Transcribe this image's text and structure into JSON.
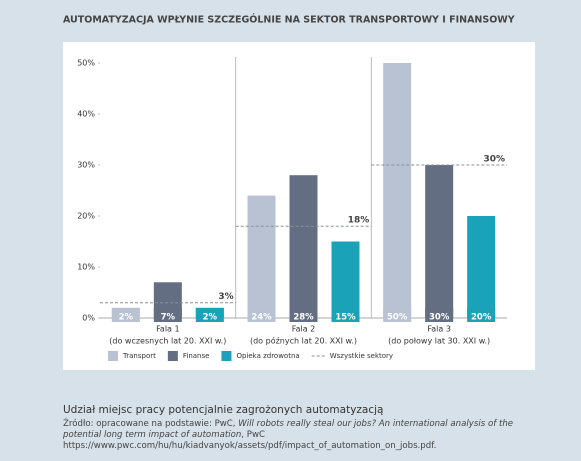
{
  "chart_data": {
    "type": "bar",
    "title": "AUTOMATYZACJA WPŁYNIE SZCZEGÓLNIE NA SEKTOR TRANSPORTOWY I FINANSOWY",
    "categories": [
      "Fala 1",
      "Fala 2",
      "Fala 3"
    ],
    "category_subtitles": [
      "(do wczesnych lat 20. XXI w.)",
      "(do późnych lat 20. XXI w.)",
      "(do połowy lat 30. XXI w.)"
    ],
    "series": [
      {
        "name": "Transport",
        "color": "#b8c2d2",
        "values": [
          2,
          24,
          50
        ],
        "value_labels": [
          "2%",
          "24%",
          "50%"
        ]
      },
      {
        "name": "Finanse",
        "color": "#646e83",
        "values": [
          7,
          28,
          30
        ],
        "value_labels": [
          "7%",
          "28%",
          "30%"
        ]
      },
      {
        "name": "Opieka zdrowotna",
        "color": "#1aa3b8",
        "values": [
          2,
          15,
          20
        ],
        "value_labels": [
          "2%",
          "15%",
          "20%"
        ]
      }
    ],
    "reference": {
      "name": "Wszystkie sektory",
      "color": "#8a8f99",
      "values": [
        3,
        18,
        30
      ],
      "value_labels": [
        "3%",
        "18%",
        "30%"
      ]
    },
    "ylim": [
      0,
      50
    ],
    "yticks": [
      {
        "value": 0,
        "label": "0%"
      },
      {
        "value": 10,
        "label": "10%"
      },
      {
        "value": 20,
        "label": "20%"
      },
      {
        "value": 30,
        "label": "30%"
      },
      {
        "value": 40,
        "label": "40%"
      },
      {
        "value": 50,
        "label": "50%"
      }
    ],
    "caption": "Udział miejsc pracy potencjalnie zagrożonych automatyzacją",
    "source": [
      "Źródło: opracowane na podstawie: PwC, ",
      "Will robots really steal our jobs? An international analysis of the potential long term impact of automation",
      ", PwC https://www.pwc.com/hu/hu/kiadvanyok/assets/pdf/impact_of_automation_on_jobs.pdf."
    ]
  }
}
